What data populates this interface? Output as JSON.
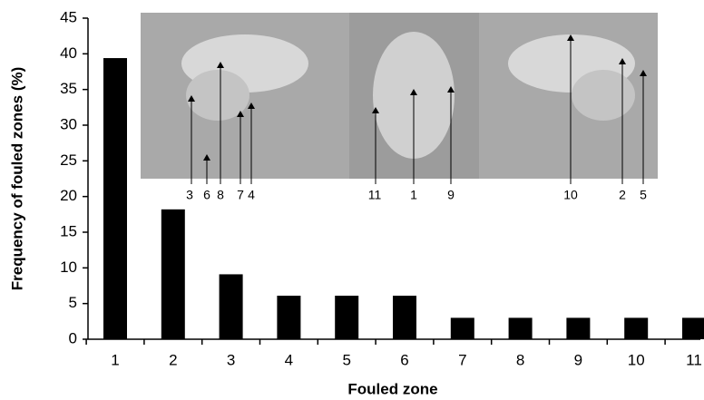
{
  "chart_data": {
    "type": "bar",
    "x_label": "Fouled zone",
    "y_label": "Frequency of fouled zones (%)",
    "categories": [
      "1",
      "2",
      "3",
      "4",
      "5",
      "6",
      "7",
      "8",
      "9",
      "10",
      "11"
    ],
    "values": [
      39.4,
      18.2,
      9.1,
      6.1,
      6.1,
      6.1,
      3.0,
      3.0,
      3.0,
      3.0,
      3.0
    ],
    "color": "#000000",
    "ylim": [
      0,
      45
    ],
    "yticks": [
      0,
      5,
      10,
      15,
      20,
      25,
      30,
      35,
      40,
      45
    ],
    "grid": false,
    "annotations": [
      "3",
      "6",
      "8",
      "7",
      "4",
      "11",
      "1",
      "9",
      "10",
      "2",
      "5"
    ]
  }
}
